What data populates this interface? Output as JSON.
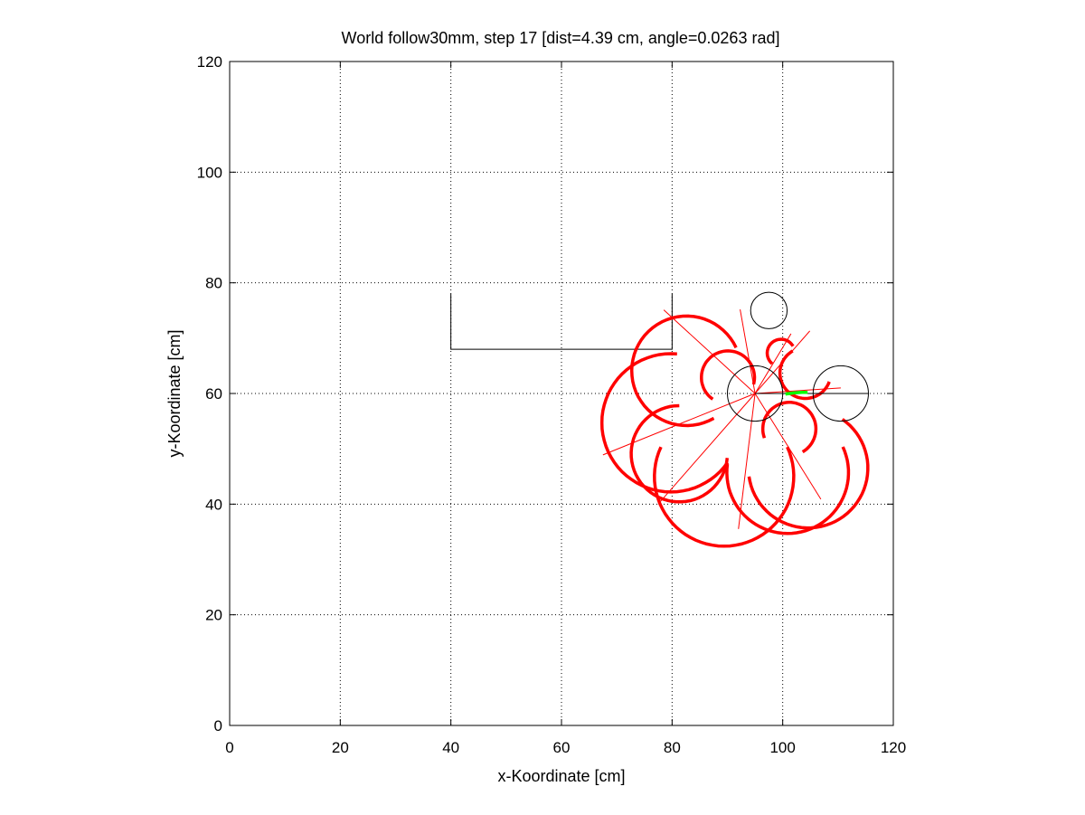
{
  "chart_data": {
    "type": "line",
    "title": "World follow30mm, step 17 [dist=4.39 cm, angle=0.0263 rad]",
    "xlabel": "x-Koordinate [cm]",
    "ylabel": "y-Koordinate [cm]",
    "xlim": [
      0,
      120
    ],
    "ylim": [
      0,
      120
    ],
    "xticks": [
      0,
      20,
      40,
      60,
      80,
      100,
      120
    ],
    "yticks": [
      0,
      20,
      40,
      60,
      80,
      100,
      120
    ],
    "grid": true,
    "grid_style": "dotted",
    "colors": {
      "axes": "#000000",
      "grid": "#000000",
      "sensor": "#ff0000",
      "path": "#00ff00",
      "wall": "#000000"
    },
    "walls": [
      {
        "name": "wall-polyline",
        "points": [
          [
            40,
            78
          ],
          [
            40,
            68
          ],
          [
            80,
            68
          ],
          [
            80,
            78
          ]
        ]
      }
    ],
    "objects": [
      {
        "name": "robot-body",
        "cx": 95,
        "cy": 60,
        "r": 5
      },
      {
        "name": "target-object",
        "cx": 110.5,
        "cy": 60,
        "r": 5
      },
      {
        "name": "small-object",
        "cx": 97.5,
        "cy": 75,
        "r": 3.3
      }
    ],
    "heading_line": {
      "from": [
        95,
        60
      ],
      "to": [
        115.5,
        60
      ]
    },
    "path": {
      "points": [
        [
          100.5,
          59.9
        ],
        [
          102,
          60.1
        ],
        [
          103.5,
          60.2
        ],
        [
          104.5,
          60.2
        ]
      ]
    },
    "sensor_rays": [
      [
        [
          95,
          60
        ],
        [
          104.9,
          71.3
        ]
      ],
      [
        [
          95,
          60
        ],
        [
          92.3,
          75.2
        ]
      ],
      [
        [
          95,
          60
        ],
        [
          78.5,
          75.1
        ]
      ],
      [
        [
          95,
          60
        ],
        [
          67.5,
          48.9
        ]
      ],
      [
        [
          95,
          60
        ],
        [
          77.9,
          40.5
        ]
      ],
      [
        [
          95,
          60
        ],
        [
          92,
          35.5
        ]
      ],
      [
        [
          95,
          60
        ],
        [
          106.9,
          40.9
        ]
      ],
      [
        [
          95,
          60
        ],
        [
          110.5,
          61
        ]
      ],
      [
        [
          95,
          60
        ],
        [
          101.5,
          70.8
        ]
      ]
    ],
    "sensor_arcs": [
      {
        "cx": 104.1,
        "cy": 63.7,
        "r": 4.6,
        "start_deg": 120,
        "end_deg": 340
      },
      {
        "cx": 101.2,
        "cy": 53.6,
        "r": 4.8,
        "start_deg": -60,
        "end_deg": 200
      },
      {
        "cx": 90.1,
        "cy": 62.9,
        "r": 4.8,
        "start_deg": -15,
        "end_deg": 235
      },
      {
        "cx": 99.7,
        "cy": 67.3,
        "r": 2.5,
        "start_deg": 30,
        "end_deg": 230
      },
      {
        "cx": 82.6,
        "cy": 64.1,
        "r": 9.9,
        "start_deg": 25,
        "end_deg": 300
      },
      {
        "cx": 79.8,
        "cy": 54.7,
        "r": 12.5,
        "start_deg": 85,
        "end_deg": 325
      },
      {
        "cx": 81.3,
        "cy": 49.1,
        "r": 8.7,
        "start_deg": 90,
        "end_deg": 355
      },
      {
        "cx": 89.4,
        "cy": 45.0,
        "r": 12.6,
        "start_deg": 155,
        "end_deg": 385
      },
      {
        "cx": 100.9,
        "cy": 45.7,
        "r": 11.0,
        "start_deg": 172,
        "end_deg": 385
      },
      {
        "cx": 104.6,
        "cy": 46.5,
        "r": 10.8,
        "start_deg": 188,
        "end_deg": 415
      }
    ]
  }
}
